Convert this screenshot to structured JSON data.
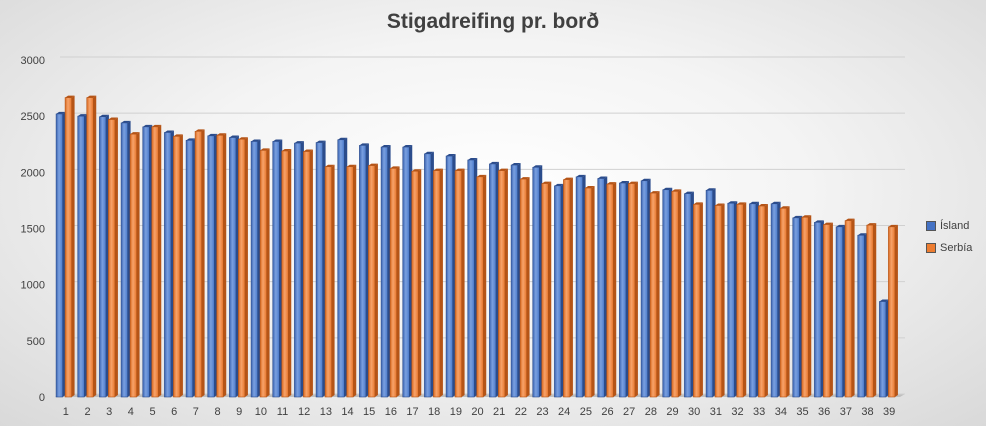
{
  "chart_data": {
    "type": "bar",
    "title": "Stigadreifing pr. borð",
    "xlabel": "",
    "ylabel": "",
    "ylim": [
      0,
      3000
    ],
    "yticks": [
      0,
      500,
      1000,
      1500,
      2000,
      2500,
      3000
    ],
    "grid": true,
    "legend_position": "right",
    "categories": [
      "1",
      "2",
      "3",
      "4",
      "5",
      "6",
      "7",
      "8",
      "9",
      "10",
      "11",
      "12",
      "13",
      "14",
      "15",
      "16",
      "17",
      "18",
      "19",
      "20",
      "21",
      "22",
      "23",
      "24",
      "25",
      "26",
      "27",
      "28",
      "29",
      "30",
      "31",
      "32",
      "33",
      "34",
      "35",
      "36",
      "37",
      "38",
      "39"
    ],
    "series": [
      {
        "name": "Ísland",
        "color": "#4472c4",
        "values": [
          2520,
          2500,
          2495,
          2440,
          2405,
          2355,
          2285,
          2325,
          2310,
          2275,
          2275,
          2260,
          2265,
          2290,
          2240,
          2225,
          2225,
          2165,
          2145,
          2110,
          2075,
          2065,
          2045,
          1880,
          1960,
          1945,
          1905,
          1925,
          1845,
          1810,
          1840,
          1725,
          1720,
          1720,
          1595,
          1555,
          1515,
          1440,
          850
        ]
      },
      {
        "name": "Serbía",
        "color": "#ed7d31",
        "values": [
          2665,
          2665,
          2470,
          2340,
          2405,
          2320,
          2365,
          2330,
          2295,
          2195,
          2190,
          2185,
          2050,
          2050,
          2060,
          2035,
          2010,
          2015,
          2015,
          1960,
          2015,
          1940,
          1900,
          1935,
          1860,
          1895,
          1900,
          1815,
          1830,
          1715,
          1705,
          1715,
          1700,
          1680,
          1600,
          1535,
          1570,
          1530,
          1515
        ]
      }
    ]
  }
}
